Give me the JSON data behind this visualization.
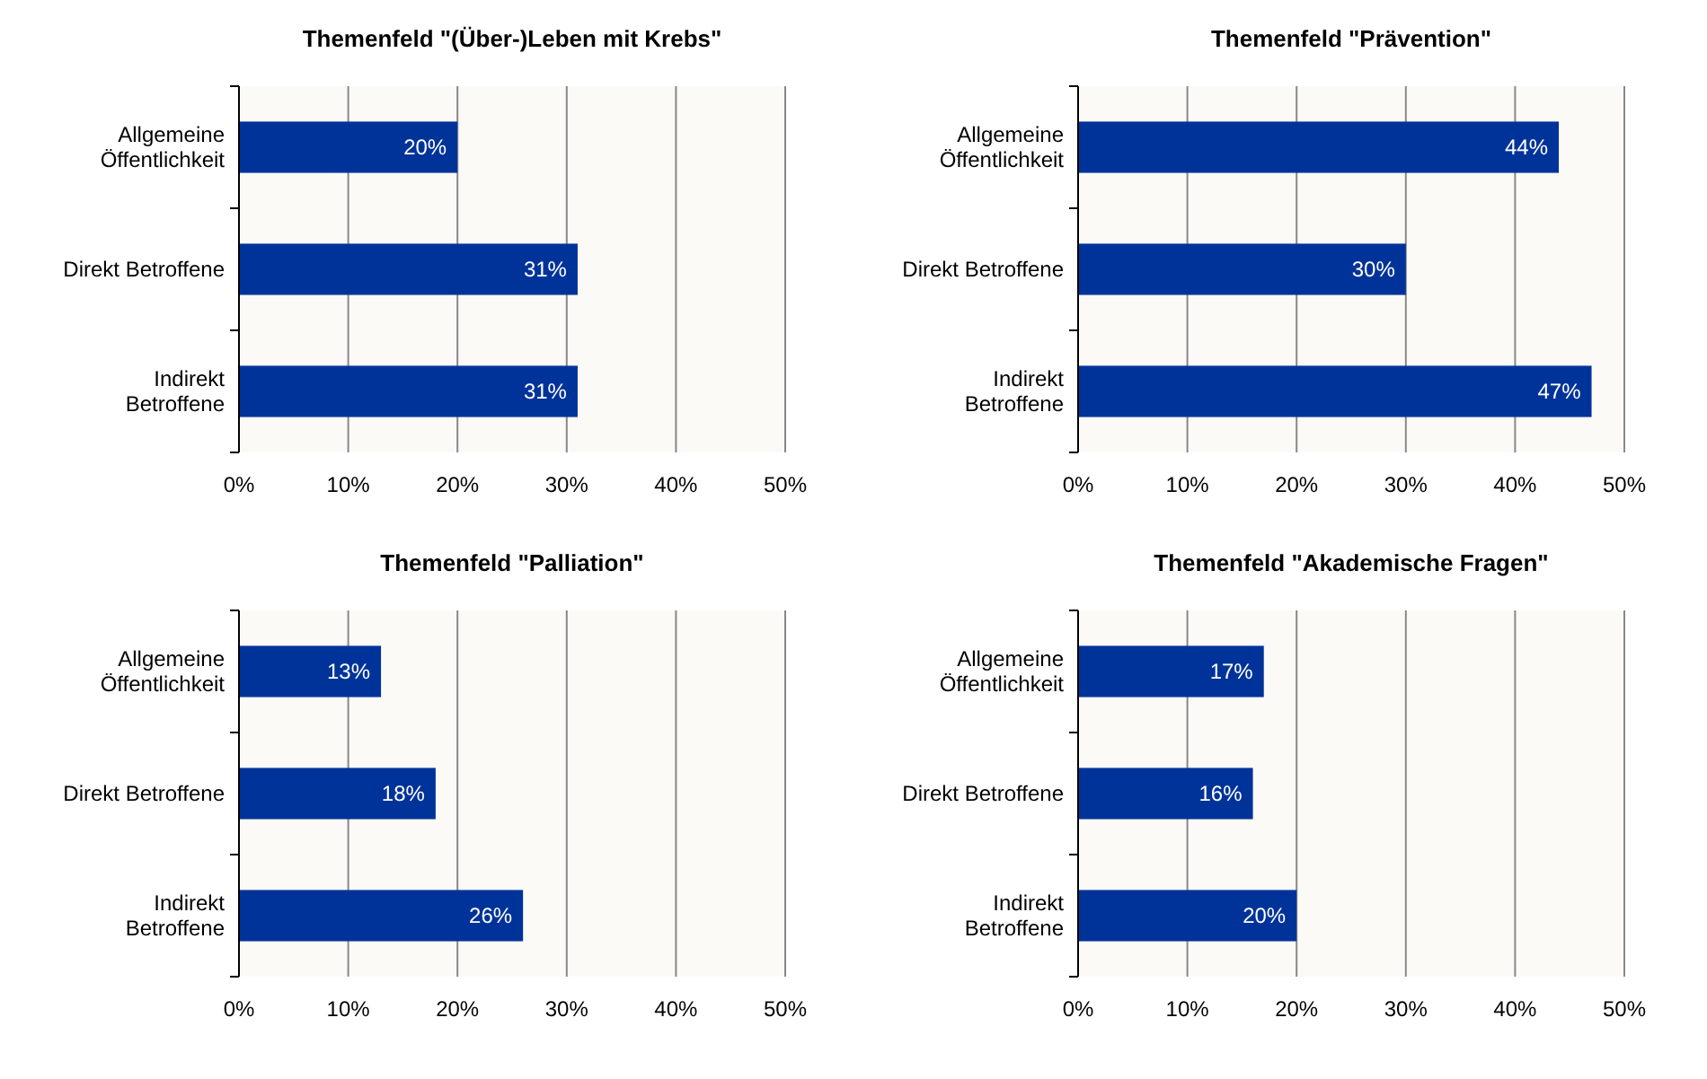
{
  "chart_data": [
    {
      "type": "bar",
      "orientation": "horizontal",
      "title": "Themenfeld \"(Über-)Leben mit Krebs\"",
      "categories": [
        "Allgemeine Öffentlichkeit",
        "Direkt Betroffene",
        "Indirekt Betroffene"
      ],
      "values": [
        20,
        31,
        31
      ],
      "value_labels": [
        "20%",
        "31%",
        "31%"
      ],
      "color": "#003399",
      "xlim": [
        0,
        50
      ],
      "xticks": [
        {
          "value": 0,
          "label": "0%"
        },
        {
          "value": 10,
          "label": "10%"
        },
        {
          "value": 20,
          "label": "20%"
        },
        {
          "value": 30,
          "label": "30%"
        },
        {
          "value": 40,
          "label": "40%"
        },
        {
          "value": 50,
          "label": "50%"
        }
      ],
      "grid": "x"
    },
    {
      "type": "bar",
      "orientation": "horizontal",
      "title": "Themenfeld \"Prävention\"",
      "categories": [
        "Allgemeine Öffentlichkeit",
        "Direkt Betroffene",
        "Indirekt Betroffene"
      ],
      "values": [
        44,
        30,
        47
      ],
      "value_labels": [
        "44%",
        "30%",
        "47%"
      ],
      "color": "#003399",
      "xlim": [
        0,
        50
      ],
      "xticks": [
        {
          "value": 0,
          "label": "0%"
        },
        {
          "value": 10,
          "label": "10%"
        },
        {
          "value": 20,
          "label": "20%"
        },
        {
          "value": 30,
          "label": "30%"
        },
        {
          "value": 40,
          "label": "40%"
        },
        {
          "value": 50,
          "label": "50%"
        }
      ],
      "grid": "x"
    },
    {
      "type": "bar",
      "orientation": "horizontal",
      "title": "Themenfeld \"Palliation\"",
      "categories": [
        "Allgemeine Öffentlichkeit",
        "Direkt Betroffene",
        "Indirekt Betroffene"
      ],
      "values": [
        13,
        18,
        26
      ],
      "value_labels": [
        "13%",
        "18%",
        "26%"
      ],
      "color": "#003399",
      "xlim": [
        0,
        50
      ],
      "xticks": [
        {
          "value": 0,
          "label": "0%"
        },
        {
          "value": 10,
          "label": "10%"
        },
        {
          "value": 20,
          "label": "20%"
        },
        {
          "value": 30,
          "label": "30%"
        },
        {
          "value": 40,
          "label": "40%"
        },
        {
          "value": 50,
          "label": "50%"
        }
      ],
      "grid": "x"
    },
    {
      "type": "bar",
      "orientation": "horizontal",
      "title": "Themenfeld \"Akademische Fragen\"",
      "categories": [
        "Allgemeine Öffentlichkeit",
        "Direkt Betroffene",
        "Indirekt Betroffene"
      ],
      "values": [
        17,
        16,
        20
      ],
      "value_labels": [
        "17%",
        "16%",
        "20%"
      ],
      "color": "#003399",
      "xlim": [
        0,
        50
      ],
      "xticks": [
        {
          "value": 0,
          "label": "0%"
        },
        {
          "value": 10,
          "label": "10%"
        },
        {
          "value": 20,
          "label": "20%"
        },
        {
          "value": 30,
          "label": "30%"
        },
        {
          "value": 40,
          "label": "40%"
        },
        {
          "value": 50,
          "label": "50%"
        }
      ],
      "grid": "x"
    }
  ]
}
